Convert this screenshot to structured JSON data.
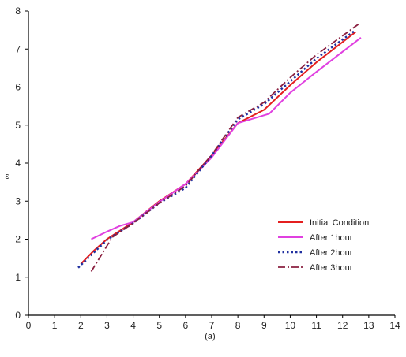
{
  "chart_data": {
    "type": "line",
    "xlabel": "(a)",
    "ylabel": "ε",
    "xlim": [
      0,
      14
    ],
    "ylim": [
      0,
      8
    ],
    "xticks": [
      0,
      1,
      2,
      3,
      4,
      5,
      6,
      7,
      8,
      9,
      10,
      11,
      12,
      13,
      14
    ],
    "yticks": [
      0,
      1,
      2,
      3,
      4,
      5,
      6,
      7,
      8
    ],
    "grid": false,
    "legend_position": "bottom-right",
    "series": [
      {
        "name": "Initial Condition",
        "color": "#e41f1f",
        "dash": "solid",
        "x": [
          2.0,
          2.5,
          3.0,
          4.0,
          5.0,
          6.0,
          7.0,
          8.0,
          9.0,
          10.0,
          11.0,
          12.5
        ],
        "y": [
          1.35,
          1.7,
          2.0,
          2.45,
          3.0,
          3.45,
          4.2,
          5.05,
          5.4,
          6.05,
          6.65,
          7.45
        ]
      },
      {
        "name": "After 1hour",
        "color": "#e040e0",
        "dash": "solid",
        "x": [
          2.4,
          3.0,
          3.5,
          4.0,
          5.0,
          6.0,
          7.0,
          8.0,
          9.2,
          10.0,
          11.0,
          12.7
        ],
        "y": [
          2.0,
          2.2,
          2.35,
          2.45,
          2.98,
          3.45,
          4.15,
          5.05,
          5.3,
          5.85,
          6.4,
          7.3
        ]
      },
      {
        "name": "After 2hour",
        "color": "#2030a0",
        "dash": "dot",
        "x": [
          1.9,
          2.5,
          3.0,
          4.0,
          5.0,
          6.0,
          7.0,
          8.0,
          9.0,
          10.0,
          11.0,
          12.5
        ],
        "y": [
          1.25,
          1.65,
          1.98,
          2.42,
          2.95,
          3.35,
          4.2,
          5.15,
          5.55,
          6.15,
          6.75,
          7.5
        ]
      },
      {
        "name": "After 3hour",
        "color": "#8b2040",
        "dash": "dashdot",
        "x": [
          2.4,
          2.8,
          3.2,
          4.0,
          5.0,
          6.0,
          7.0,
          8.0,
          9.0,
          10.0,
          11.0,
          12.6
        ],
        "y": [
          1.15,
          1.6,
          2.05,
          2.42,
          2.95,
          3.4,
          4.22,
          5.2,
          5.6,
          6.25,
          6.85,
          7.65
        ]
      }
    ]
  }
}
